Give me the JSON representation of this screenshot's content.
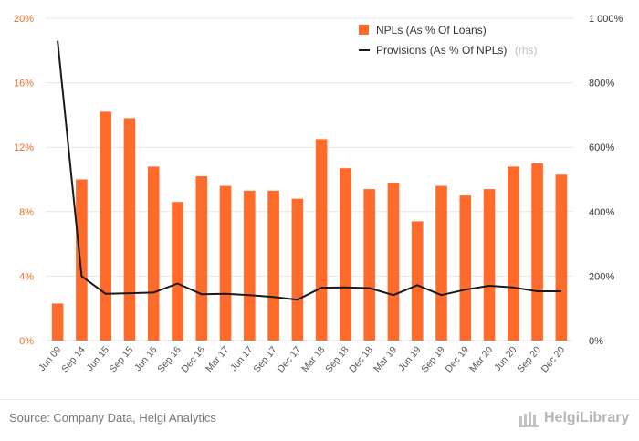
{
  "chart_data": {
    "type": "bar+line",
    "categories": [
      "Jun 09",
      "Sep 14",
      "Jun 15",
      "Sep 15",
      "Jun 16",
      "Sep 16",
      "Dec 16",
      "Mar 17",
      "Jun 17",
      "Sep 17",
      "Dec 17",
      "Mar 18",
      "Sep 18",
      "Dec 18",
      "Mar 19",
      "Jun 19",
      "Sep 19",
      "Dec 19",
      "Mar 20",
      "Jun 20",
      "Sep 20",
      "Dec 20"
    ],
    "series": [
      {
        "name": "NPLs (As % Of Loans)",
        "type": "bar",
        "axis": "left",
        "color": "#ff6b2b",
        "values": [
          2.3,
          10.0,
          14.2,
          13.8,
          10.8,
          8.6,
          10.2,
          9.6,
          9.3,
          9.3,
          8.8,
          12.5,
          10.7,
          9.4,
          9.8,
          7.4,
          9.6,
          9.0,
          9.4,
          10.8,
          11.0,
          10.3
        ]
      },
      {
        "name": "Provisions (As % Of NPLs)",
        "suffix": "(rhs)",
        "type": "line",
        "axis": "right",
        "color": "#1a1a1a",
        "values": [
          930,
          200,
          145,
          147,
          149,
          177,
          144,
          145,
          141,
          135,
          127,
          164,
          165,
          163,
          141,
          172,
          141,
          158,
          170,
          165,
          153,
          153
        ]
      }
    ],
    "y_left": {
      "min": 0,
      "max": 20,
      "ticks": [
        "0%",
        "4%",
        "8%",
        "12%",
        "16%",
        "20%"
      ]
    },
    "y_right": {
      "min": 0,
      "max": 1000,
      "ticks": [
        "0%",
        "200%",
        "400%",
        "600%",
        "800%",
        "1 000%"
      ]
    },
    "grid": true,
    "legend_position": "top-right"
  },
  "source": "Source: Company Data, Helgi Analytics",
  "brand": "HelgiLibrary"
}
